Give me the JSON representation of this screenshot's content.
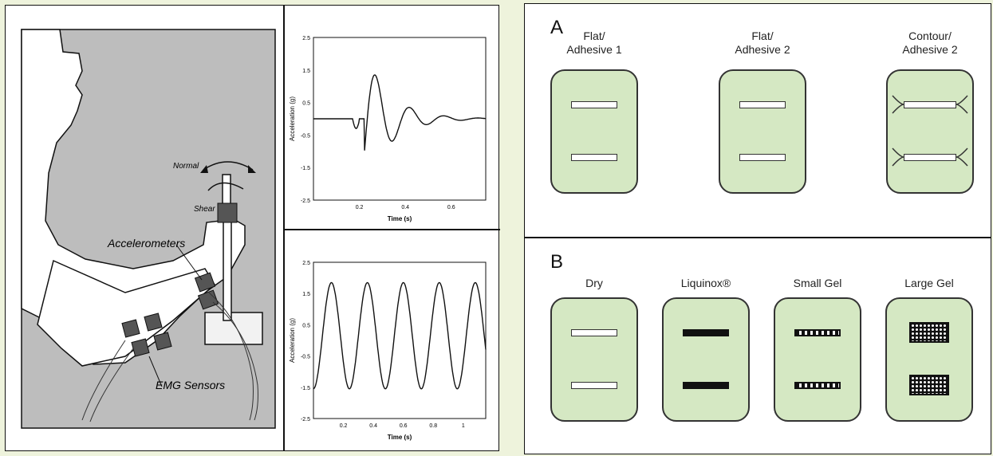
{
  "left_figure": {
    "labels": {
      "normal": "Normal",
      "shear": "Shear",
      "accelerometers": "Accelerometers",
      "emg_sensors": "EMG Sensors"
    },
    "plot_top": {
      "ylabel": "Acceleration (g)",
      "xlabel": "Time (s)",
      "yticks": [
        "2.5",
        "1.5",
        "0.5",
        "-0.5",
        "-1.5",
        "-2.5"
      ],
      "xticks": [
        "0.2",
        "0.4",
        "0.6"
      ]
    },
    "plot_bottom": {
      "ylabel": "Acceleration (g)",
      "xlabel": "Time (s)",
      "yticks": [
        "2.5",
        "1.5",
        "0.5",
        "-0.5",
        "-1.5",
        "-2.5"
      ],
      "xticks": [
        "0.2",
        "0.4",
        "0.6",
        "0.8",
        "1"
      ]
    }
  },
  "right_figure": {
    "section_a": {
      "letter": "A",
      "electrodes": [
        {
          "label": "Flat/\nAdhesive 1",
          "style": "open"
        },
        {
          "label": "Flat/\nAdhesive 2",
          "style": "open"
        },
        {
          "label": "Contour/\nAdhesive 2",
          "style": "contour"
        }
      ]
    },
    "section_b": {
      "letter": "B",
      "electrodes": [
        {
          "label": "Dry",
          "style": "open"
        },
        {
          "label": "Liquinox®",
          "style": "solid"
        },
        {
          "label": "Small Gel",
          "style": "dots"
        },
        {
          "label": "Large Gel",
          "style": "big-dots"
        }
      ]
    }
  },
  "colors": {
    "background": "#eef3dc",
    "electrode_fill": "#d5e8c3",
    "arm_gray": "#bdbdbd"
  }
}
